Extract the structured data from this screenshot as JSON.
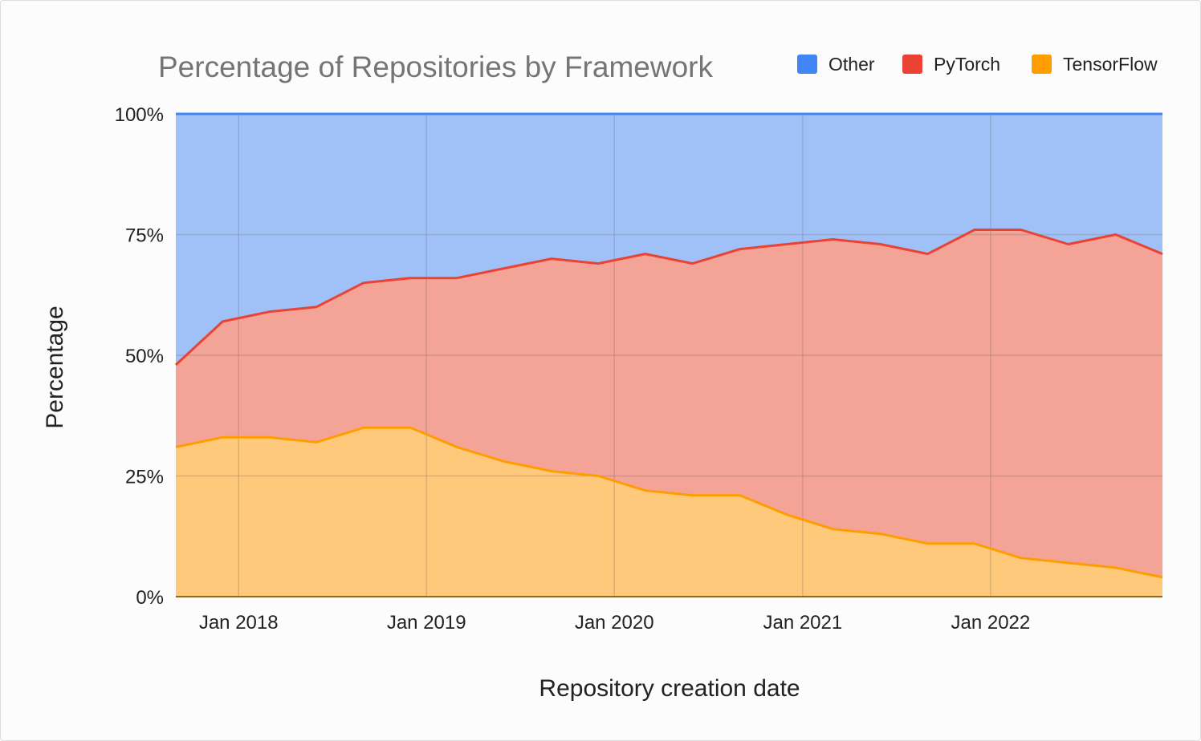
{
  "chart_data": {
    "type": "area",
    "stacked": "percent",
    "title": "Percentage of Repositories by Framework",
    "xlabel": "Repository creation date",
    "ylabel": "Percentage",
    "ylim": [
      0,
      100
    ],
    "y_ticks": [
      "0%",
      "25%",
      "50%",
      "75%",
      "100%"
    ],
    "x_ticks": [
      {
        "label": "Jan 2018",
        "date": "2018-01-01"
      },
      {
        "label": "Jan 2019",
        "date": "2019-01-01"
      },
      {
        "label": "Jan 2020",
        "date": "2020-01-01"
      },
      {
        "label": "Jan 2021",
        "date": "2021-01-01"
      },
      {
        "label": "Jan 2022",
        "date": "2022-01-01"
      }
    ],
    "xlim": [
      "2017-09-01",
      "2022-12-01"
    ],
    "grid": true,
    "legend_position": "top-right",
    "x": [
      "2017-09-01",
      "2017-12-01",
      "2018-03-01",
      "2018-06-01",
      "2018-09-01",
      "2018-12-01",
      "2019-03-01",
      "2019-06-01",
      "2019-09-01",
      "2019-12-01",
      "2020-03-01",
      "2020-06-01",
      "2020-09-01",
      "2020-12-01",
      "2021-03-01",
      "2021-06-01",
      "2021-09-01",
      "2021-12-01",
      "2022-03-01",
      "2022-06-01",
      "2022-09-01",
      "2022-12-01"
    ],
    "series": [
      {
        "name": "Other",
        "color": "#4285f4",
        "fill": "#a0c1f7",
        "values": [
          52,
          43,
          41,
          40,
          35,
          34,
          34,
          32,
          30,
          31,
          29,
          31,
          28,
          27,
          26,
          27,
          29,
          24,
          24,
          27,
          25,
          29
        ]
      },
      {
        "name": "PyTorch",
        "color": "#ea4335",
        "fill": "#f4a397",
        "values": [
          17,
          24,
          26,
          28,
          30,
          31,
          35,
          40,
          44,
          44,
          49,
          48,
          51,
          56,
          60,
          60,
          60,
          65,
          68,
          66,
          69,
          67
        ]
      },
      {
        "name": "TensorFlow",
        "color": "#ff9d00",
        "fill": "#fec97b",
        "values": [
          31,
          33,
          33,
          32,
          35,
          35,
          31,
          28,
          26,
          25,
          22,
          21,
          21,
          17,
          14,
          13,
          11,
          11,
          8,
          7,
          6,
          4
        ]
      }
    ]
  }
}
